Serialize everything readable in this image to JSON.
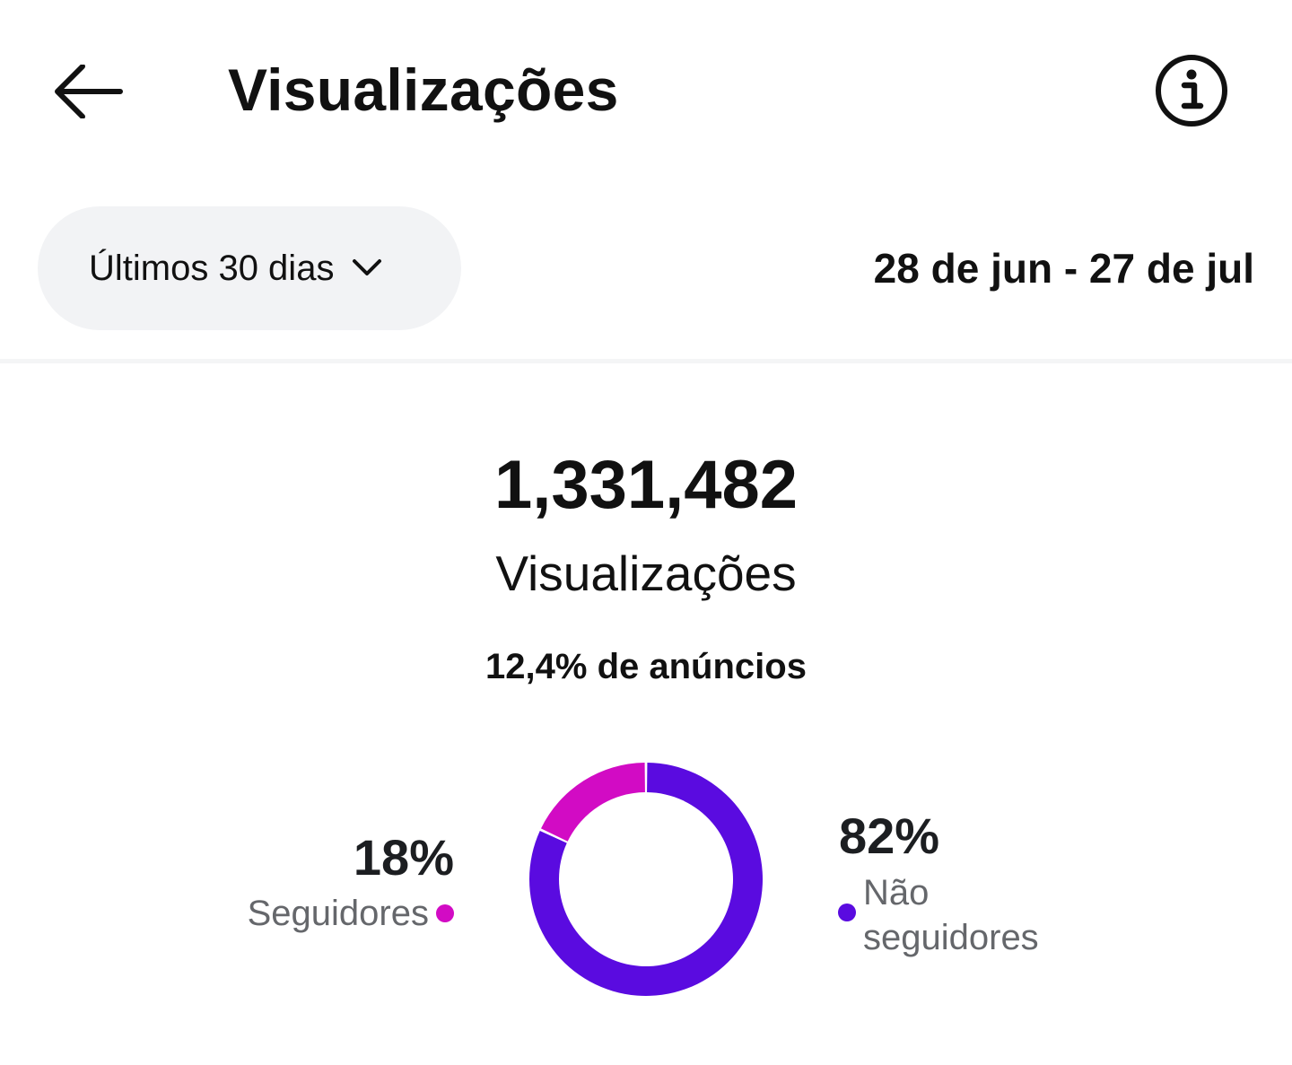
{
  "header": {
    "title": "Visualizações",
    "back_icon": "arrow-left-icon",
    "info_icon": "info-circle-icon"
  },
  "filter": {
    "period_label": "Últimos 30 dias",
    "date_range": "28 de jun - 27 de jul"
  },
  "summary": {
    "total_value": "1,331,482",
    "total_label": "Visualizações",
    "ads_text": "12,4% de anúncios"
  },
  "breakdown": {
    "followers": {
      "percent_label": "18%",
      "label": "Seguidores",
      "value": 18,
      "color": "#d20bc4"
    },
    "non_followers": {
      "percent_label": "82%",
      "label": "Não seguidores",
      "value": 82,
      "color": "#5a0be0"
    }
  },
  "chart_data": {
    "type": "pie",
    "title": "",
    "categories": [
      "Seguidores",
      "Não seguidores"
    ],
    "values": [
      18,
      82
    ],
    "colors": [
      "#d20bc4",
      "#5a0be0"
    ],
    "donut": true
  }
}
